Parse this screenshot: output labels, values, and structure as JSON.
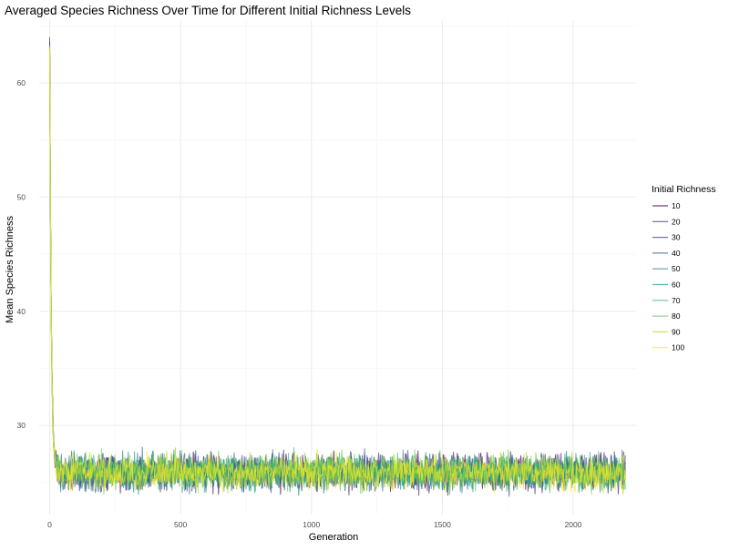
{
  "chart_data": {
    "type": "line",
    "title": "Averaged Species Richness Over Time for Different Initial Richness Levels",
    "xlabel": "Generation",
    "ylabel": "Mean Species Richness",
    "xlim": [
      -40,
      2240
    ],
    "ylim": [
      22.2,
      65.5
    ],
    "x_ticks": [
      0,
      500,
      1000,
      1500,
      2000
    ],
    "y_ticks": [
      30,
      40,
      50,
      60
    ],
    "grid": true,
    "legend": {
      "title": "Initial Richness",
      "placement": "right",
      "entries": [
        "10",
        "20",
        "30",
        "40",
        "50",
        "60",
        "70",
        "80",
        "90",
        "100"
      ]
    },
    "colors": [
      "#440154",
      "#482878",
      "#3E4A89",
      "#31688E",
      "#26828E",
      "#1F9E89",
      "#35B779",
      "#6DCD59",
      "#B4DE2C",
      "#FDE725"
    ],
    "x_max": 2200,
    "series": [
      {
        "name": "10",
        "start": 63.5,
        "plateau": 25.9,
        "noise": 0.75
      },
      {
        "name": "20",
        "start": 64.0,
        "plateau": 25.8,
        "noise": 0.75
      },
      {
        "name": "30",
        "start": 63.6,
        "plateau": 25.9,
        "noise": 0.75
      },
      {
        "name": "40",
        "start": 63.2,
        "plateau": 26.0,
        "noise": 0.75
      },
      {
        "name": "50",
        "start": 63.0,
        "plateau": 25.9,
        "noise": 0.75
      },
      {
        "name": "60",
        "start": 62.8,
        "plateau": 25.8,
        "noise": 0.75
      },
      {
        "name": "70",
        "start": 63.0,
        "plateau": 26.0,
        "noise": 0.75
      },
      {
        "name": "80",
        "start": 63.3,
        "plateau": 26.0,
        "noise": 0.75
      },
      {
        "name": "90",
        "start": 63.1,
        "plateau": 25.9,
        "noise": 0.75
      },
      {
        "name": "100",
        "start": 62.9,
        "plateau": 25.9,
        "noise": 0.75
      }
    ]
  }
}
